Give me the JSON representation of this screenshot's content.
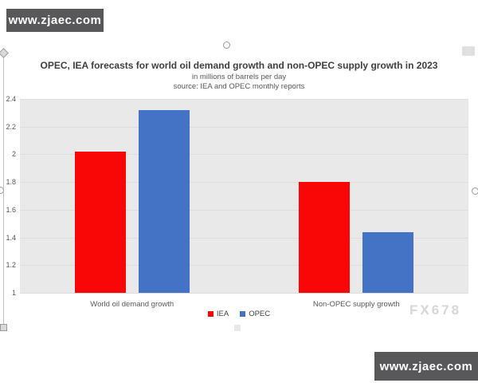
{
  "watermarks": {
    "top_left": "www.zjaec.com",
    "bottom_right": "www.zjaec.com",
    "chart_brand": "FX678"
  },
  "chart_data": {
    "type": "bar",
    "title": "OPEC, IEA forecasts for world oil demand growth and non-OPEC supply growth in 2023",
    "subtitle": "in millions of barrels per day",
    "source_note": "source: IEA and OPEC monthly reports",
    "categories": [
      "World oil demand growth",
      "Non-OPEC supply growth"
    ],
    "series": [
      {
        "name": "IEA",
        "color": "#f90606",
        "values": [
          2.02,
          1.8
        ]
      },
      {
        "name": "OPEC",
        "color": "#4472c4",
        "values": [
          2.32,
          1.44
        ]
      }
    ],
    "ylim": [
      1,
      2.4
    ],
    "yticks": [
      1,
      1.2,
      1.4,
      1.6,
      1.8,
      2,
      2.2,
      2.4
    ],
    "ytick_labels": [
      "1",
      "1.2",
      "1.4",
      "1.6",
      "1.8",
      "2",
      "2.2",
      "2.4"
    ],
    "grid": true,
    "legend_position": "bottom",
    "plot_bg": "#e9e9e9",
    "gridline_color": "#dddddd"
  }
}
